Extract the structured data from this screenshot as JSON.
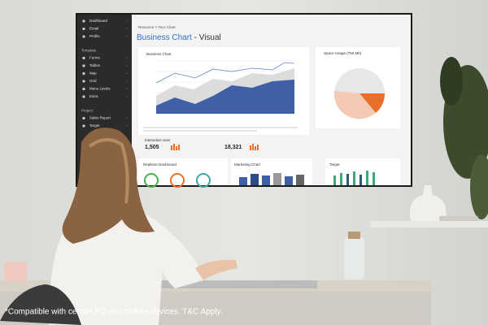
{
  "screen": {
    "sidebar": {
      "main": [
        "Dashboard",
        "Email",
        "Profile"
      ],
      "template_heading": "Template",
      "template": [
        "Forms",
        "Tables",
        "Map",
        "Grid",
        "Menu Levels",
        "Extra"
      ],
      "project_heading": "Project",
      "project": [
        "Sales Report",
        "Target"
      ]
    },
    "breadcrumb": "Resource > Your Chart",
    "title": "Business Chart",
    "title_suffix": " - Visual",
    "business_chart": "Business Chart",
    "space_usage": "Space Usage (750 Mb)",
    "interactive_user": "Interactive User",
    "stat_1": "1,505",
    "stat_2": "18,321",
    "realtime": "Realtime Dashboard",
    "marketing": "Marketing Chart",
    "target": "Target"
  },
  "caption": "*Compatible with certain PC and mobile devices. T&C Apply."
}
